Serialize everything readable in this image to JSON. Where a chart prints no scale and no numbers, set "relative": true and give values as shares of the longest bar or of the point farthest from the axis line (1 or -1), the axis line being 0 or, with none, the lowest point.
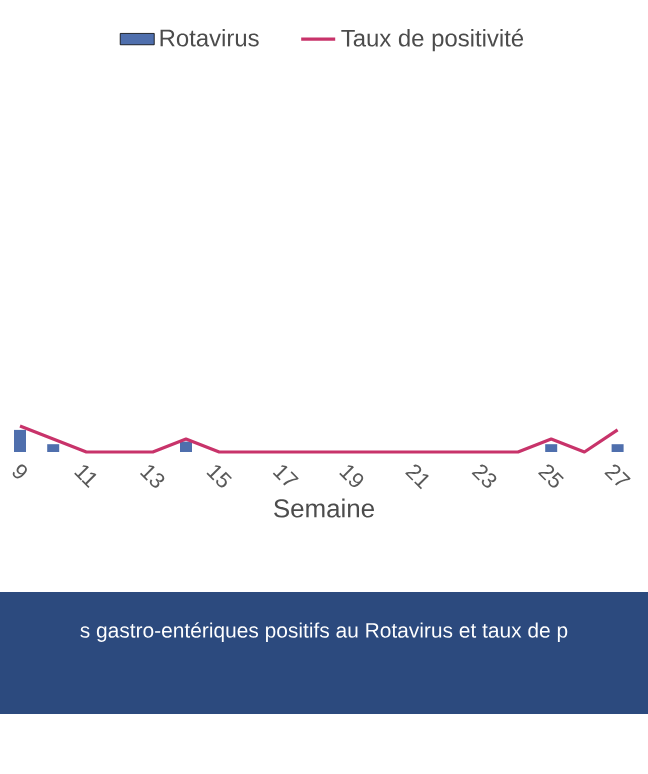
{
  "chart_data": {
    "type": "bar",
    "xlabel": "Semaine",
    "relative": true,
    "legend": "top",
    "categories": [
      "9",
      null,
      "11",
      null,
      "13",
      null,
      "15",
      null,
      "17",
      null,
      "19",
      null,
      "21",
      null,
      "23",
      null,
      "25",
      null,
      "27"
    ],
    "series": [
      {
        "name": "Rotavirus",
        "color": "#4f6fad",
        "values": [
          0.85,
          0.3,
          0,
          0,
          0,
          0.4,
          0,
          0,
          0,
          0,
          0,
          0,
          0,
          0,
          0,
          0,
          0.3,
          0,
          0.3
        ]
      },
      {
        "name": "Taux de positivité",
        "type": "line",
        "color": "#c8336a",
        "values": [
          1,
          0.5,
          0,
          0,
          0,
          0.5,
          0,
          0,
          0,
          0,
          0,
          0,
          0,
          0,
          0,
          0,
          0.5,
          0,
          0.85
        ]
      }
    ],
    "annotations": [
      "s gastro-entériques positifs au Rotavirus et taux de p"
    ]
  }
}
